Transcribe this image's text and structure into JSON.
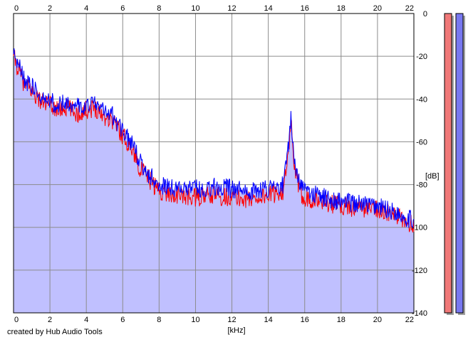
{
  "chart_data": {
    "type": "area",
    "x_unit_label": "[kHz]",
    "y_unit_label": "[dB]",
    "xlim": [
      0,
      22
    ],
    "ylim": [
      -140,
      0
    ],
    "x_ticks": [
      "0",
      "2",
      "4",
      "6",
      "8",
      "10",
      "12",
      "14",
      "16",
      "18",
      "20",
      "22"
    ],
    "y_ticks": [
      "0",
      "-20",
      "-40",
      "-60",
      "-80",
      "-100",
      "-120",
      "-140"
    ],
    "grid": true,
    "series": [
      {
        "color": "#ff0000",
        "x": [
          0,
          0.3,
          0.6,
          1,
          1.5,
          2,
          2.5,
          3,
          3.5,
          4,
          4.5,
          5,
          5.5,
          6,
          6.5,
          7,
          7.5,
          8,
          9,
          10,
          11,
          12,
          13,
          14,
          14.8,
          15.1,
          15.25,
          15.4,
          15.7,
          16,
          17,
          18,
          19,
          20,
          21,
          22
        ],
        "y": [
          -20,
          -27,
          -33,
          -36,
          -41,
          -43,
          -45,
          -44,
          -47,
          -45,
          -44,
          -48,
          -50,
          -57,
          -63,
          -73,
          -78,
          -83,
          -85,
          -86,
          -85,
          -86,
          -87,
          -85,
          -83,
          -68,
          -50,
          -70,
          -83,
          -86,
          -88,
          -90,
          -91,
          -91,
          -95,
          -99
        ]
      },
      {
        "color": "#0000ff",
        "x": [
          0,
          0.3,
          0.6,
          1,
          1.5,
          2,
          2.5,
          3,
          3.5,
          4,
          4.5,
          5,
          5.5,
          6,
          6.5,
          7,
          7.5,
          8,
          9,
          10,
          11,
          12,
          13,
          14,
          14.8,
          15.1,
          15.25,
          15.4,
          15.7,
          16,
          17,
          18,
          19,
          20,
          21,
          22
        ],
        "y": [
          -19,
          -24,
          -31,
          -34,
          -39,
          -41,
          -43,
          -41,
          -44,
          -43,
          -42,
          -45,
          -48,
          -55,
          -61,
          -70,
          -76,
          -80,
          -82,
          -82,
          -81,
          -82,
          -83,
          -82,
          -80,
          -62,
          -47,
          -66,
          -80,
          -83,
          -86,
          -88,
          -89,
          -90,
          -93,
          -97
        ]
      }
    ]
  },
  "meters": [
    {
      "color": "#f07878"
    },
    {
      "color": "#7878f0"
    }
  ],
  "credit": "created by Hub Audio Tools"
}
